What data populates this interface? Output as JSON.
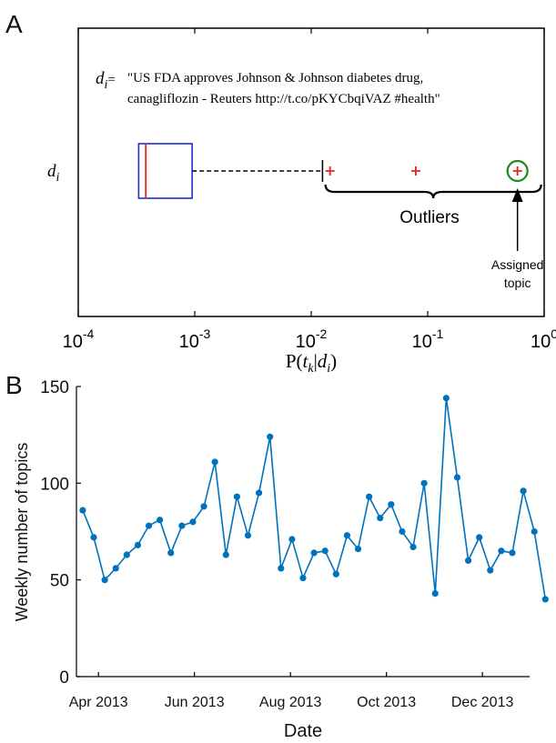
{
  "chart_data": [
    {
      "panel_label": "A",
      "type": "boxplot",
      "xscale": "log",
      "xlim": [
        0.0001,
        1
      ],
      "x_ticks": [
        {
          "value": 0.0001,
          "base": "10",
          "exp": "-4"
        },
        {
          "value": 0.001,
          "base": "10",
          "exp": "-3"
        },
        {
          "value": 0.01,
          "base": "10",
          "exp": "-2"
        },
        {
          "value": 0.1,
          "base": "10",
          "exp": "-1"
        },
        {
          "value": 1,
          "base": "10",
          "exp": "0"
        }
      ],
      "xlabel_parts": {
        "prefix": "P(",
        "t": "t",
        "t_sub": "k",
        "bar": "|",
        "d": "d",
        "d_sub": "i",
        "suffix": ")"
      },
      "y_label": {
        "main": "d",
        "sub": "i"
      },
      "doc_label": {
        "main": "d",
        "sub": "i",
        "eq": "="
      },
      "doc_text_line1": "\"US FDA approves Johnson & Johnson diabetes drug,",
      "doc_text_line2": "canagliflozin - Reuters http://t.co/pKYCbqiVAZ #health\"",
      "box": {
        "q1": 0.00033,
        "median": 0.00038,
        "q3": 0.00095,
        "whisker_high": 0.0125
      },
      "outliers": [
        0.0145,
        0.079,
        0.59
      ],
      "assigned": 0.59,
      "outliers_label": "Outliers",
      "assigned_label_line1": "Assigned",
      "assigned_label_line2": "topic",
      "colors": {
        "box": "#1f2fd0",
        "median": "#e8221b",
        "outlier": "#e8221b",
        "circle": "#1a8a1a"
      }
    },
    {
      "panel_label": "B",
      "type": "line",
      "xlabel": "Date",
      "ylabel": "Weekly number of topics",
      "ylim": [
        0,
        150
      ],
      "y_ticks": [
        "0",
        "50",
        "100",
        "150"
      ],
      "x_ticks": [
        "Apr 2013",
        "Jun 2013",
        "Aug 2013",
        "Oct 2013",
        "Dec 2013"
      ],
      "x_tick_dates": [
        "2013-04-01",
        "2013-06-01",
        "2013-08-01",
        "2013-10-01",
        "2013-12-01"
      ],
      "x_start": "2013-03-18",
      "x_end": "2013-12-31",
      "first_week": "2013-03-22",
      "values": [
        86,
        72,
        50,
        56,
        63,
        68,
        78,
        81,
        64,
        78,
        80,
        88,
        111,
        63,
        93,
        73,
        95,
        124,
        56,
        71,
        51,
        64,
        65,
        53,
        73,
        66,
        93,
        82,
        89,
        75,
        67,
        100,
        43,
        144,
        103,
        60,
        72,
        55,
        65,
        64,
        96,
        75,
        40
      ],
      "color": "#0072bd"
    }
  ]
}
